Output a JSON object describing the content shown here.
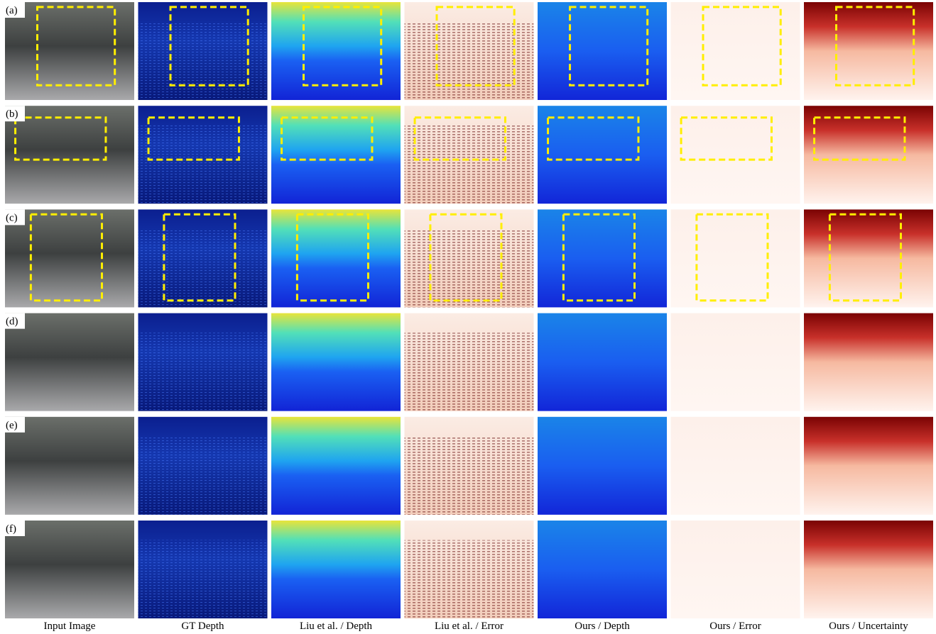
{
  "rows": [
    {
      "label": "(a)"
    },
    {
      "label": "(b)"
    },
    {
      "label": "(c)"
    },
    {
      "label": "(d)"
    },
    {
      "label": "(e)"
    },
    {
      "label": "(f)"
    }
  ],
  "columns": [
    "Input Image",
    "GT Depth",
    "Liu et al. / Depth",
    "Liu et al. / Error",
    "Ours / Depth",
    "Ours / Error",
    "Ours / Uncertainty"
  ]
}
